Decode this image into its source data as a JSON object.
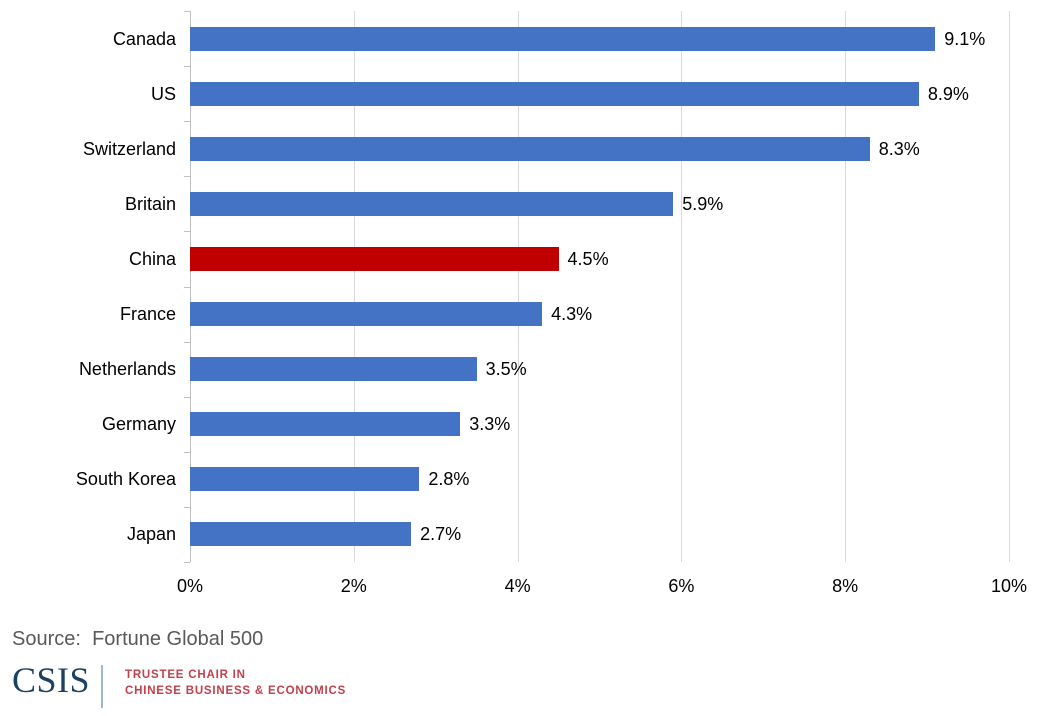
{
  "chart_data": {
    "type": "bar",
    "orientation": "horizontal",
    "title": "",
    "categories": [
      "Canada",
      "US",
      "Switzerland",
      "Britain",
      "China",
      "France",
      "Netherlands",
      "Germany",
      "South Korea",
      "Japan"
    ],
    "values": [
      9.1,
      8.9,
      8.3,
      5.9,
      4.5,
      4.3,
      3.5,
      3.3,
      2.8,
      2.7
    ],
    "value_labels": [
      "9.1%",
      "8.9%",
      "8.3%",
      "5.9%",
      "4.5%",
      "4.3%",
      "3.5%",
      "3.3%",
      "2.8%",
      "2.7%"
    ],
    "highlight_category": "China",
    "bar_color": "#4472c4",
    "highlight_color": "#c00000",
    "xlim": [
      0,
      10
    ],
    "x_tick_values": [
      0,
      2,
      4,
      6,
      8,
      10
    ],
    "x_tick_labels": [
      "0%",
      "2%",
      "4%",
      "6%",
      "8%",
      "10%"
    ],
    "grid": true,
    "legend": "none",
    "gridline_color": "#d9d9d9",
    "axis_color": "#bfbfbf",
    "label_color": "#000000"
  },
  "source": {
    "label": "Source:",
    "text": "Fortune Global 500",
    "color": "#595959"
  },
  "branding": {
    "logo_text": "CSIS",
    "logo_color": "#1b4265",
    "tagline_line1": "TRUSTEE CHAIR IN",
    "tagline_line2": "CHINESE BUSINESS & ECONOMICS",
    "tagline_color": "#c2404a",
    "divider_color": "#9fb6cb"
  }
}
